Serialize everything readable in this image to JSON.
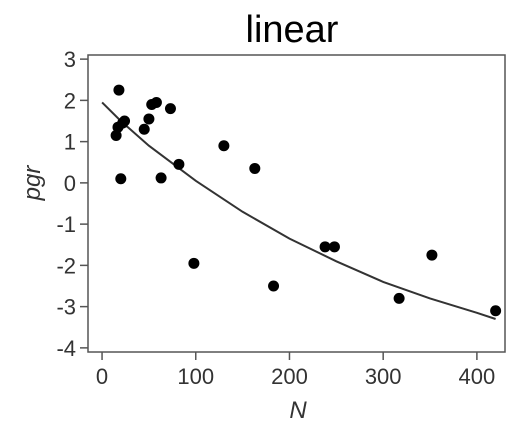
{
  "chart_data": {
    "type": "scatter",
    "title": "linear",
    "xlabel": "N",
    "ylabel": "pgr",
    "xlim": [
      -15,
      430
    ],
    "ylim": [
      -4.1,
      3.1
    ],
    "xticks": [
      0,
      100,
      200,
      300,
      400
    ],
    "yticks": [
      3,
      2,
      1,
      0,
      -1,
      -2,
      -3,
      -4
    ],
    "xtick_labels": [
      "0",
      "100",
      "200",
      "300",
      "400"
    ],
    "ytick_labels": [
      "3",
      "2",
      "1",
      "0",
      "-1",
      "-2",
      "-3",
      "-4"
    ],
    "grid": false,
    "points": [
      {
        "x": 18,
        "y": 2.25
      },
      {
        "x": 15,
        "y": 1.15
      },
      {
        "x": 17,
        "y": 1.35
      },
      {
        "x": 22,
        "y": 1.45
      },
      {
        "x": 24,
        "y": 1.5
      },
      {
        "x": 20,
        "y": 0.1
      },
      {
        "x": 45,
        "y": 1.3
      },
      {
        "x": 50,
        "y": 1.55
      },
      {
        "x": 53,
        "y": 1.9
      },
      {
        "x": 58,
        "y": 1.95
      },
      {
        "x": 73,
        "y": 1.8
      },
      {
        "x": 63,
        "y": 0.12
      },
      {
        "x": 82,
        "y": 0.45
      },
      {
        "x": 98,
        "y": -1.95
      },
      {
        "x": 130,
        "y": 0.9
      },
      {
        "x": 163,
        "y": 0.35
      },
      {
        "x": 183,
        "y": -2.5
      },
      {
        "x": 238,
        "y": -1.55
      },
      {
        "x": 248,
        "y": -1.55
      },
      {
        "x": 317,
        "y": -2.8
      },
      {
        "x": 352,
        "y": -1.75
      },
      {
        "x": 420,
        "y": -3.1
      }
    ],
    "fit_line": [
      {
        "x": 0,
        "y": 1.95
      },
      {
        "x": 20,
        "y": 1.5
      },
      {
        "x": 50,
        "y": 0.9
      },
      {
        "x": 100,
        "y": 0.05
      },
      {
        "x": 150,
        "y": -0.7
      },
      {
        "x": 200,
        "y": -1.35
      },
      {
        "x": 250,
        "y": -1.9
      },
      {
        "x": 300,
        "y": -2.4
      },
      {
        "x": 350,
        "y": -2.8
      },
      {
        "x": 400,
        "y": -3.15
      },
      {
        "x": 420,
        "y": -3.3
      }
    ],
    "colors": {
      "point": "#000000",
      "line": "#333333",
      "frame": "#555555",
      "background": "#ffffff"
    }
  }
}
